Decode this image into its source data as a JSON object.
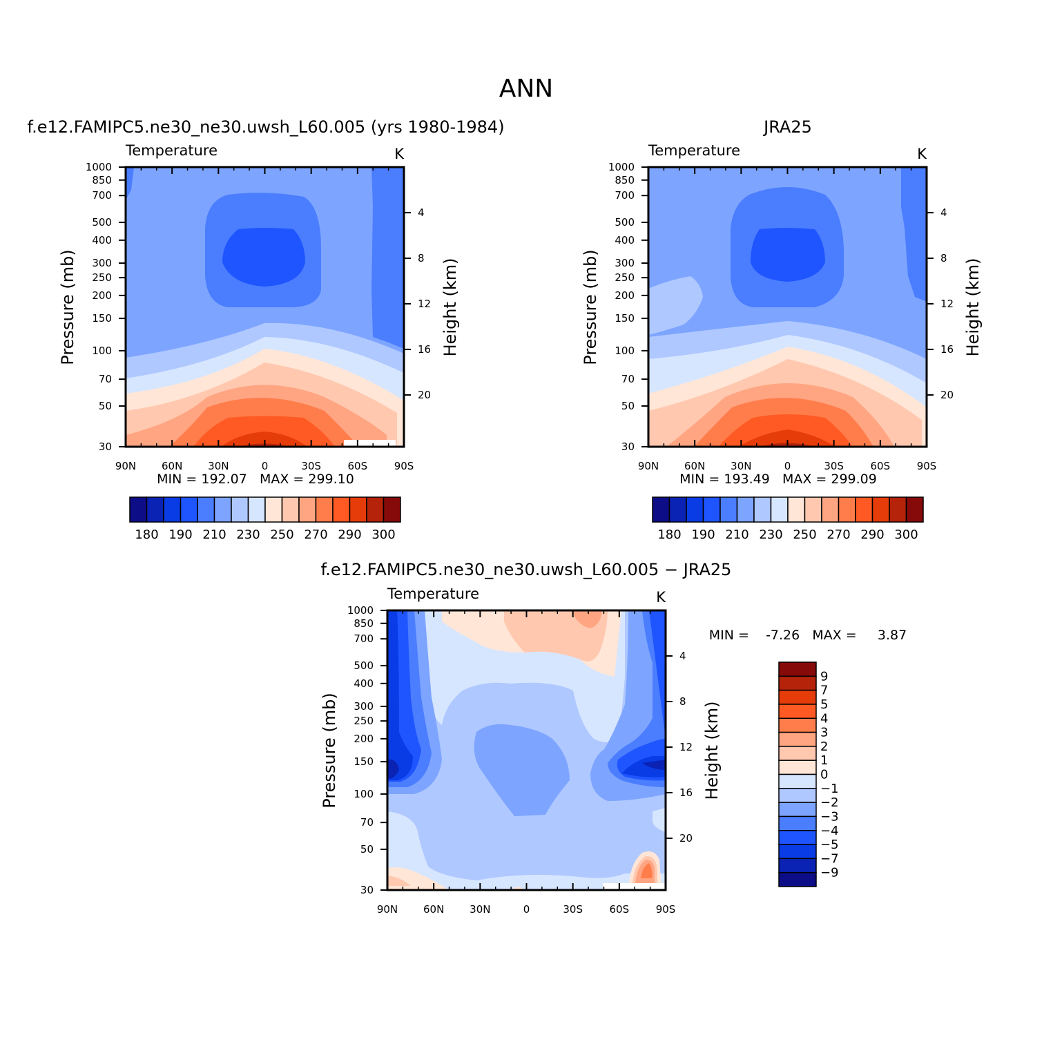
{
  "figure_title": "ANN",
  "chart_data": [
    {
      "type": "heatmap",
      "title": "f.e12.FAMIPC5.ne30_ne30.uwsh_L60.005 (yrs 1980-1984)",
      "subtitle_left": "Temperature",
      "subtitle_right": "K",
      "ylabel": "Pressure (mb)",
      "ylabel_right": "Height (km)",
      "x_ticks": [
        "90N",
        "60N",
        "30N",
        "0",
        "30S",
        "60S",
        "90S"
      ],
      "p_ticks": [
        "30",
        "50",
        "70",
        "100",
        "150",
        "200",
        "250",
        "300",
        "400",
        "500",
        "700",
        "850",
        "1000"
      ],
      "h_ticks": [
        "20",
        "16",
        "12",
        "8",
        "4"
      ],
      "xlim": [
        90,
        -90
      ],
      "ylim_mb": [
        1000,
        30
      ],
      "stats": "MIN = 192.07   MAX = 299.10",
      "min": 192.07,
      "max": 299.1,
      "colorbar": {
        "labels": [
          "180",
          "190",
          "210",
          "230",
          "250",
          "270",
          "290",
          "300"
        ],
        "levels": [
          180,
          185,
          190,
          200,
          210,
          220,
          230,
          240,
          250,
          260,
          270,
          280,
          290,
          295,
          300
        ]
      }
    },
    {
      "type": "heatmap",
      "title": "JRA25",
      "subtitle_left": "Temperature",
      "subtitle_right": "K",
      "ylabel": "Pressure (mb)",
      "ylabel_right": "Height (km)",
      "x_ticks": [
        "90N",
        "60N",
        "30N",
        "0",
        "30S",
        "60S",
        "90S"
      ],
      "p_ticks": [
        "30",
        "50",
        "70",
        "100",
        "150",
        "200",
        "250",
        "300",
        "400",
        "500",
        "700",
        "850",
        "1000"
      ],
      "h_ticks": [
        "20",
        "16",
        "12",
        "8",
        "4"
      ],
      "xlim": [
        90,
        -90
      ],
      "ylim_mb": [
        1000,
        30
      ],
      "stats": "MIN = 193.49   MAX = 299.09",
      "min": 193.49,
      "max": 299.09,
      "colorbar": {
        "labels": [
          "180",
          "190",
          "210",
          "230",
          "250",
          "270",
          "290",
          "300"
        ],
        "levels": [
          180,
          185,
          190,
          200,
          210,
          220,
          230,
          240,
          250,
          260,
          270,
          280,
          290,
          295,
          300
        ]
      }
    },
    {
      "type": "heatmap",
      "title": "f.e12.FAMIPC5.ne30_ne30.uwsh_L60.005 − JRA25",
      "subtitle_left": "Temperature",
      "subtitle_right": "K",
      "ylabel": "Pressure (mb)",
      "ylabel_right": "Height (km)",
      "x_ticks": [
        "90N",
        "60N",
        "30N",
        "0",
        "30S",
        "60S",
        "90S"
      ],
      "p_ticks": [
        "30",
        "50",
        "70",
        "100",
        "150",
        "200",
        "250",
        "300",
        "400",
        "500",
        "700",
        "850",
        "1000"
      ],
      "h_ticks": [
        "20",
        "16",
        "12",
        "8",
        "4"
      ],
      "xlim": [
        90,
        -90
      ],
      "ylim_mb": [
        1000,
        30
      ],
      "stats": "MIN =    -7.26   MAX =     3.87",
      "min": -7.26,
      "max": 3.87,
      "colorbar": {
        "labels": [
          "9",
          "7",
          "5",
          "4",
          "3",
          "2",
          "1",
          "0",
          "−1",
          "−2",
          "−3",
          "−4",
          "−5",
          "−7",
          "−9"
        ],
        "levels": [
          -9,
          -7,
          -5,
          -4,
          -3,
          -2,
          -1,
          0,
          1,
          2,
          3,
          4,
          5,
          7,
          9
        ]
      }
    }
  ],
  "palette": [
    "#0d0d87",
    "#0a23b4",
    "#0a3ce6",
    "#1e55ff",
    "#4b7dff",
    "#7da5ff",
    "#afc8ff",
    "#d7e6ff",
    "#ffe6d7",
    "#ffc8af",
    "#ffa582",
    "#ff7d4b",
    "#ff5a23",
    "#e63c0a",
    "#b4230a",
    "#870a0a"
  ]
}
